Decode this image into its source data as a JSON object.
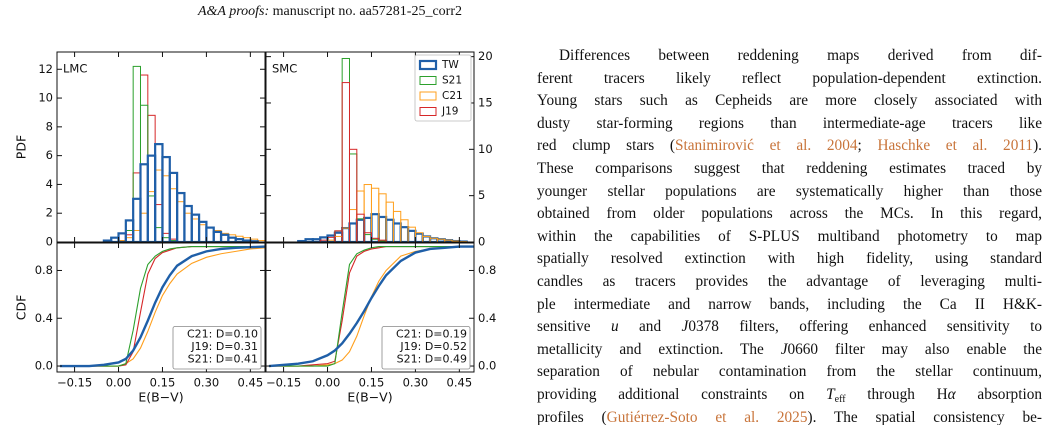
{
  "header": {
    "journal": "A&A proofs:",
    "manuscript": "manuscript no. aa57281-25_corr2"
  },
  "chart_data": [
    {
      "type": "histogram",
      "label": "LMC",
      "ylabel": "PDF",
      "ytick_side": "left",
      "xtick_labels": false,
      "xlim": [
        -0.21,
        0.5
      ],
      "ylim": [
        0,
        13.2
      ],
      "xticks": [
        -0.15,
        0,
        0.15,
        0.3,
        0.45
      ],
      "yticks": [
        0,
        2,
        4,
        6,
        8,
        10,
        12
      ],
      "bins": [
        -0.1,
        -0.075,
        -0.05,
        -0.025,
        0,
        0.025,
        0.05,
        0.075,
        0.1,
        0.125,
        0.15,
        0.175,
        0.2,
        0.225,
        0.25,
        0.275,
        0.3,
        0.325,
        0.35,
        0.375,
        0.4,
        0.425,
        0.45,
        0.475,
        0.5
      ],
      "series": [
        {
          "color": "#d62728",
          "values": [
            0,
            0,
            0,
            0,
            0.1,
            0.5,
            4.8,
            11.6,
            8.8,
            2.6,
            0.6,
            0.2,
            0,
            0,
            0,
            0,
            0,
            0,
            0,
            0,
            0,
            0,
            0,
            0
          ]
        },
        {
          "color": "#ff9f1c",
          "values": [
            0,
            0,
            0,
            0,
            0.1,
            0.3,
            0.8,
            2.0,
            3.5,
            5.0,
            4.6,
            3.7,
            2.8,
            2.0,
            1.6,
            1.2,
            1.0,
            0.8,
            0.6,
            0.5,
            0.4,
            0.3,
            0.2,
            0.1
          ]
        },
        {
          "color": "#2ca02c",
          "values": [
            0,
            0,
            0,
            0,
            0,
            0.8,
            12.2,
            9.5,
            3.2,
            1.0,
            0.3,
            0.1,
            0,
            0,
            0,
            0,
            0,
            0,
            0,
            0,
            0,
            0,
            0,
            0
          ]
        },
        {
          "color": "#1f5fa8",
          "values": [
            0,
            0,
            0.1,
            0.3,
            0.6,
            1.5,
            3.0,
            5.4,
            6.0,
            6.8,
            5.9,
            4.8,
            3.4,
            2.5,
            1.9,
            1.4,
            1.0,
            0.7,
            0.5,
            0.3,
            0.2,
            0.1,
            0.05,
            0
          ]
        }
      ]
    },
    {
      "type": "histogram",
      "label": "SMC",
      "ytick_side": "right",
      "xtick_labels": false,
      "legend": "upper right",
      "xlim": [
        -0.21,
        0.5
      ],
      "ylim": [
        0,
        20.5
      ],
      "xticks": [
        -0.15,
        0,
        0.15,
        0.3,
        0.45
      ],
      "yticks": [
        0,
        5,
        10,
        15,
        20
      ],
      "bins": [
        -0.1,
        -0.075,
        -0.05,
        -0.025,
        0,
        0.025,
        0.05,
        0.075,
        0.1,
        0.125,
        0.15,
        0.175,
        0.2,
        0.225,
        0.25,
        0.275,
        0.3,
        0.325,
        0.35,
        0.375,
        0.4,
        0.425,
        0.45,
        0.475,
        0.5
      ],
      "series": [
        {
          "name": "TW",
          "color": "#1f5fa8",
          "values": [
            0.1,
            0.3,
            0.3,
            0.5,
            0.7,
            1.0,
            1.5,
            2.0,
            2.4,
            2.6,
            3.0,
            2.7,
            2.4,
            2.0,
            1.6,
            1.2,
            0.9,
            0.6,
            0.4,
            0.3,
            0.2,
            0.1,
            0.05,
            0
          ]
        },
        {
          "name": "S21",
          "color": "#2ca02c",
          "values": [
            0,
            0,
            0,
            0,
            0,
            1.2,
            19.8,
            9.5,
            2.5,
            0.8,
            0.3,
            0.1,
            0,
            0,
            0,
            0,
            0,
            0,
            0,
            0,
            0,
            0,
            0,
            0
          ]
        },
        {
          "name": "C21",
          "color": "#ff9f1c",
          "values": [
            0,
            0,
            0,
            0,
            0.2,
            0.6,
            1.5,
            3.5,
            5.5,
            6.2,
            5.8,
            5.2,
            4.3,
            3.3,
            2.4,
            1.6,
            1.0,
            0.6,
            0.4,
            0.3,
            0.2,
            0.1,
            0.05,
            0
          ]
        },
        {
          "name": "J19",
          "color": "#d62728",
          "values": [
            0,
            0,
            0,
            0.2,
            0.5,
            1.2,
            17.2,
            10.0,
            3.0,
            1.0,
            0.4,
            0.2,
            0,
            0,
            0,
            0,
            0,
            0,
            0,
            0,
            0,
            0,
            0,
            0
          ]
        }
      ]
    },
    {
      "type": "line",
      "ylabel": "CDF",
      "xlabel": "E(B−V)",
      "ytick_side": "left",
      "annotations": [
        "C21: D=0.10",
        "J19: D=0.31",
        "S21: D=0.41"
      ],
      "xlim": [
        -0.21,
        0.5
      ],
      "ylim": [
        -0.05,
        1.03
      ],
      "xticks": [
        {
          "value": -0.15,
          "label": "−0.15"
        },
        {
          "value": 0,
          "label": "0.00"
        },
        0.15,
        {
          "value": 0.3,
          "label": "0.30"
        },
        0.45
      ],
      "yticks": [
        {
          "value": 0,
          "label": "0.0"
        },
        0.4,
        0.8
      ],
      "x": [
        -0.2,
        -0.1,
        -0.05,
        0,
        0.025,
        0.05,
        0.075,
        0.1,
        0.125,
        0.15,
        0.175,
        0.2,
        0.25,
        0.3,
        0.35,
        0.4,
        0.45,
        0.5
      ],
      "series": [
        {
          "color": "#ff9f1c",
          "values": [
            0,
            0,
            0,
            0,
            0.02,
            0.06,
            0.15,
            0.29,
            0.45,
            0.59,
            0.69,
            0.77,
            0.86,
            0.91,
            0.94,
            0.96,
            0.98,
            0.99
          ]
        },
        {
          "color": "#d62728",
          "values": [
            0,
            0,
            0,
            0,
            0.01,
            0.12,
            0.45,
            0.77,
            0.9,
            0.95,
            0.97,
            0.99,
            1,
            1,
            1,
            1,
            1,
            1
          ]
        },
        {
          "color": "#2ca02c",
          "values": [
            0,
            0,
            0,
            0,
            0.02,
            0.3,
            0.65,
            0.85,
            0.92,
            0.96,
            0.98,
            0.99,
            1,
            1,
            1,
            1,
            1,
            1
          ]
        },
        {
          "color": "#1f5fa8",
          "values": [
            0,
            0,
            0.01,
            0.03,
            0.06,
            0.13,
            0.24,
            0.38,
            0.53,
            0.66,
            0.76,
            0.84,
            0.92,
            0.96,
            0.98,
            0.99,
            0.995,
            1
          ]
        }
      ]
    },
    {
      "type": "line",
      "xlabel": "E(B−V)",
      "ytick_side": "right",
      "annotations": [
        "C21: D=0.19",
        "J19: D=0.52",
        "S21: D=0.49"
      ],
      "xlim": [
        -0.21,
        0.5
      ],
      "ylim": [
        -0.05,
        1.03
      ],
      "xticks": [
        {
          "value": -0.15,
          "label": "−0.15"
        },
        {
          "value": 0,
          "label": "0.00"
        },
        0.15,
        {
          "value": 0.3,
          "label": "0.30"
        },
        0.45
      ],
      "yticks": [
        {
          "value": 0,
          "label": "0.0"
        },
        0.4,
        0.8
      ],
      "x": [
        -0.2,
        -0.1,
        -0.05,
        0,
        0.025,
        0.05,
        0.075,
        0.1,
        0.125,
        0.15,
        0.175,
        0.2,
        0.25,
        0.3,
        0.35,
        0.4,
        0.45,
        0.5
      ],
      "series": [
        {
          "color": "#ff9f1c",
          "values": [
            0,
            0,
            0,
            0.01,
            0.02,
            0.05,
            0.12,
            0.25,
            0.42,
            0.58,
            0.71,
            0.8,
            0.92,
            0.96,
            0.98,
            0.99,
            1,
            1
          ]
        },
        {
          "color": "#d62728",
          "values": [
            0,
            0,
            0.01,
            0.02,
            0.04,
            0.38,
            0.78,
            0.92,
            0.96,
            0.98,
            0.99,
            1,
            1,
            1,
            1,
            1,
            1,
            1
          ]
        },
        {
          "color": "#2ca02c",
          "values": [
            0,
            0,
            0,
            0,
            0.02,
            0.45,
            0.85,
            0.94,
            0.97,
            0.99,
            1,
            1,
            1,
            1,
            1,
            1,
            1,
            1
          ]
        },
        {
          "color": "#1f5fa8",
          "values": [
            0,
            0.02,
            0.04,
            0.09,
            0.13,
            0.19,
            0.27,
            0.36,
            0.46,
            0.57,
            0.67,
            0.76,
            0.88,
            0.95,
            0.98,
            0.99,
            1,
            1
          ]
        }
      ]
    }
  ],
  "paragraph": {
    "lines": [
      [
        "Differences between reddening maps derived from dif-"
      ],
      [
        "ferent tracers likely reflect population-dependent extinction."
      ],
      [
        "Young stars such as Cepheids are more closely associated with"
      ],
      [
        "dusty star-forming regions than intermediate-age tracers like"
      ],
      [
        "red clump stars (",
        {
          "text": "Stanimirović et al. 2004",
          "style": "link"
        },
        "; ",
        {
          "text": "Haschke et al. 2011",
          "style": "link"
        },
        ")."
      ],
      [
        "These comparisons suggest that reddening estimates traced by"
      ],
      [
        "younger stellar populations are systematically higher than those"
      ],
      [
        "obtained from older populations across the MCs. In this regard,"
      ],
      [
        "within the capabilities of S-PLUS multiband photometry to map"
      ],
      [
        "spatially resolved extinction with high fidelity, using standard"
      ],
      [
        "candles as tracers provides the advantage of leveraging multi-"
      ],
      [
        "ple intermediate and narrow bands, including the Ca II H&K-"
      ],
      [
        "sensitive ",
        {
          "text": "u",
          "style": "italic"
        },
        " and ",
        {
          "text": "J",
          "style": "italic"
        },
        "0378 filters, offering enhanced sensitivity to"
      ],
      [
        "metallicity and extinction. The ",
        {
          "text": "J",
          "style": "italic"
        },
        "0660 filter may also enable the"
      ],
      [
        "separation of nebular contamination from the stellar continuum,"
      ],
      [
        "providing additional constraints on ",
        {
          "text": "T",
          "style": "italic"
        },
        {
          "text": "eff",
          "style": "sub"
        },
        " through H",
        {
          "text": "α",
          "style": "italic"
        },
        " absorption"
      ],
      [
        "profiles (",
        {
          "text": "Gutiérrez-Soto et al. 2025",
          "style": "link"
        },
        "). The spatial consistency be-"
      ]
    ]
  }
}
